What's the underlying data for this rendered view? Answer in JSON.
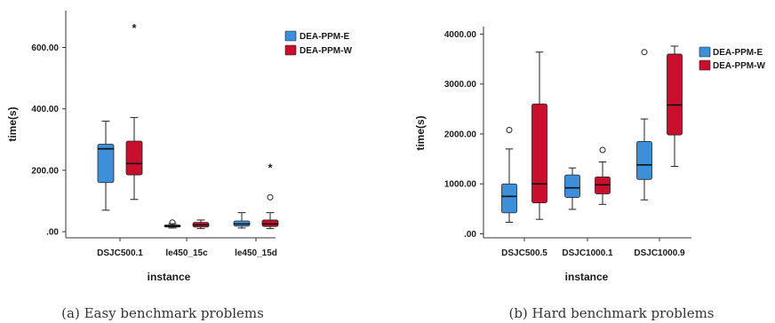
{
  "colors": {
    "E": "#3c8fd8",
    "W": "#c8102e"
  },
  "chart_data": [
    {
      "type": "boxplot",
      "caption": "(a) Easy benchmark problems",
      "xlabel": "instance",
      "ylabel": "time(s)",
      "ylim": [
        -20,
        720
      ],
      "yticks": [
        0,
        200,
        400,
        600
      ],
      "ytick_labels": [
        ".00",
        "200.00",
        "400.00",
        "600.00"
      ],
      "categories": [
        "DSJC500.1",
        "le450_15c",
        "le450_15d"
      ],
      "series": [
        {
          "name": "DEA-PPM-E",
          "boxes": [
            {
              "min": 70,
              "q1": 160,
              "median": 270,
              "q3": 285,
              "max": 360,
              "outliers": []
            },
            {
              "min": 12,
              "q1": 15,
              "median": 18,
              "q3": 22,
              "max": 26,
              "outliers": [
                30
              ]
            },
            {
              "min": 12,
              "q1": 18,
              "median": 25,
              "q3": 35,
              "max": 62,
              "outliers": []
            }
          ]
        },
        {
          "name": "DEA-PPM-W",
          "boxes": [
            {
              "min": 105,
              "q1": 185,
              "median": 222,
              "q3": 295,
              "max": 372,
              "outliers": [],
              "extremes": [
                665
              ]
            },
            {
              "min": 10,
              "q1": 15,
              "median": 22,
              "q3": 30,
              "max": 38,
              "outliers": []
            },
            {
              "min": 10,
              "q1": 17,
              "median": 25,
              "q3": 38,
              "max": 62,
              "outliers": [
                112
              ],
              "extremes": [
                210
              ]
            }
          ]
        }
      ]
    },
    {
      "type": "boxplot",
      "caption": "(b) Hard benchmark problems",
      "xlabel": "instance",
      "ylabel": "time(s)",
      "ylim": [
        -80,
        4150
      ],
      "yticks": [
        0,
        1000,
        2000,
        3000,
        4000
      ],
      "ytick_labels": [
        ".00",
        "1000.00",
        "2000.00",
        "3000.00",
        "4000.00"
      ],
      "categories": [
        "DSJC500.5",
        "DSJC1000.1",
        "DSJC1000.9"
      ],
      "series": [
        {
          "name": "DEA-PPM-E",
          "boxes": [
            {
              "min": 230,
              "q1": 420,
              "median": 750,
              "q3": 1000,
              "max": 1700,
              "outliers": [
                2080
              ]
            },
            {
              "min": 490,
              "q1": 730,
              "median": 920,
              "q3": 1180,
              "max": 1320,
              "outliers": []
            },
            {
              "min": 680,
              "q1": 1090,
              "median": 1380,
              "q3": 1850,
              "max": 2300,
              "outliers": [
                3640
              ]
            }
          ]
        },
        {
          "name": "DEA-PPM-W",
          "boxes": [
            {
              "min": 290,
              "q1": 620,
              "median": 1000,
              "q3": 2600,
              "max": 3640,
              "outliers": []
            },
            {
              "min": 590,
              "q1": 800,
              "median": 980,
              "q3": 1140,
              "max": 1440,
              "outliers": [
                1680
              ]
            },
            {
              "min": 1350,
              "q1": 1980,
              "median": 2580,
              "q3": 3600,
              "max": 3760,
              "outliers": []
            }
          ]
        }
      ]
    }
  ]
}
